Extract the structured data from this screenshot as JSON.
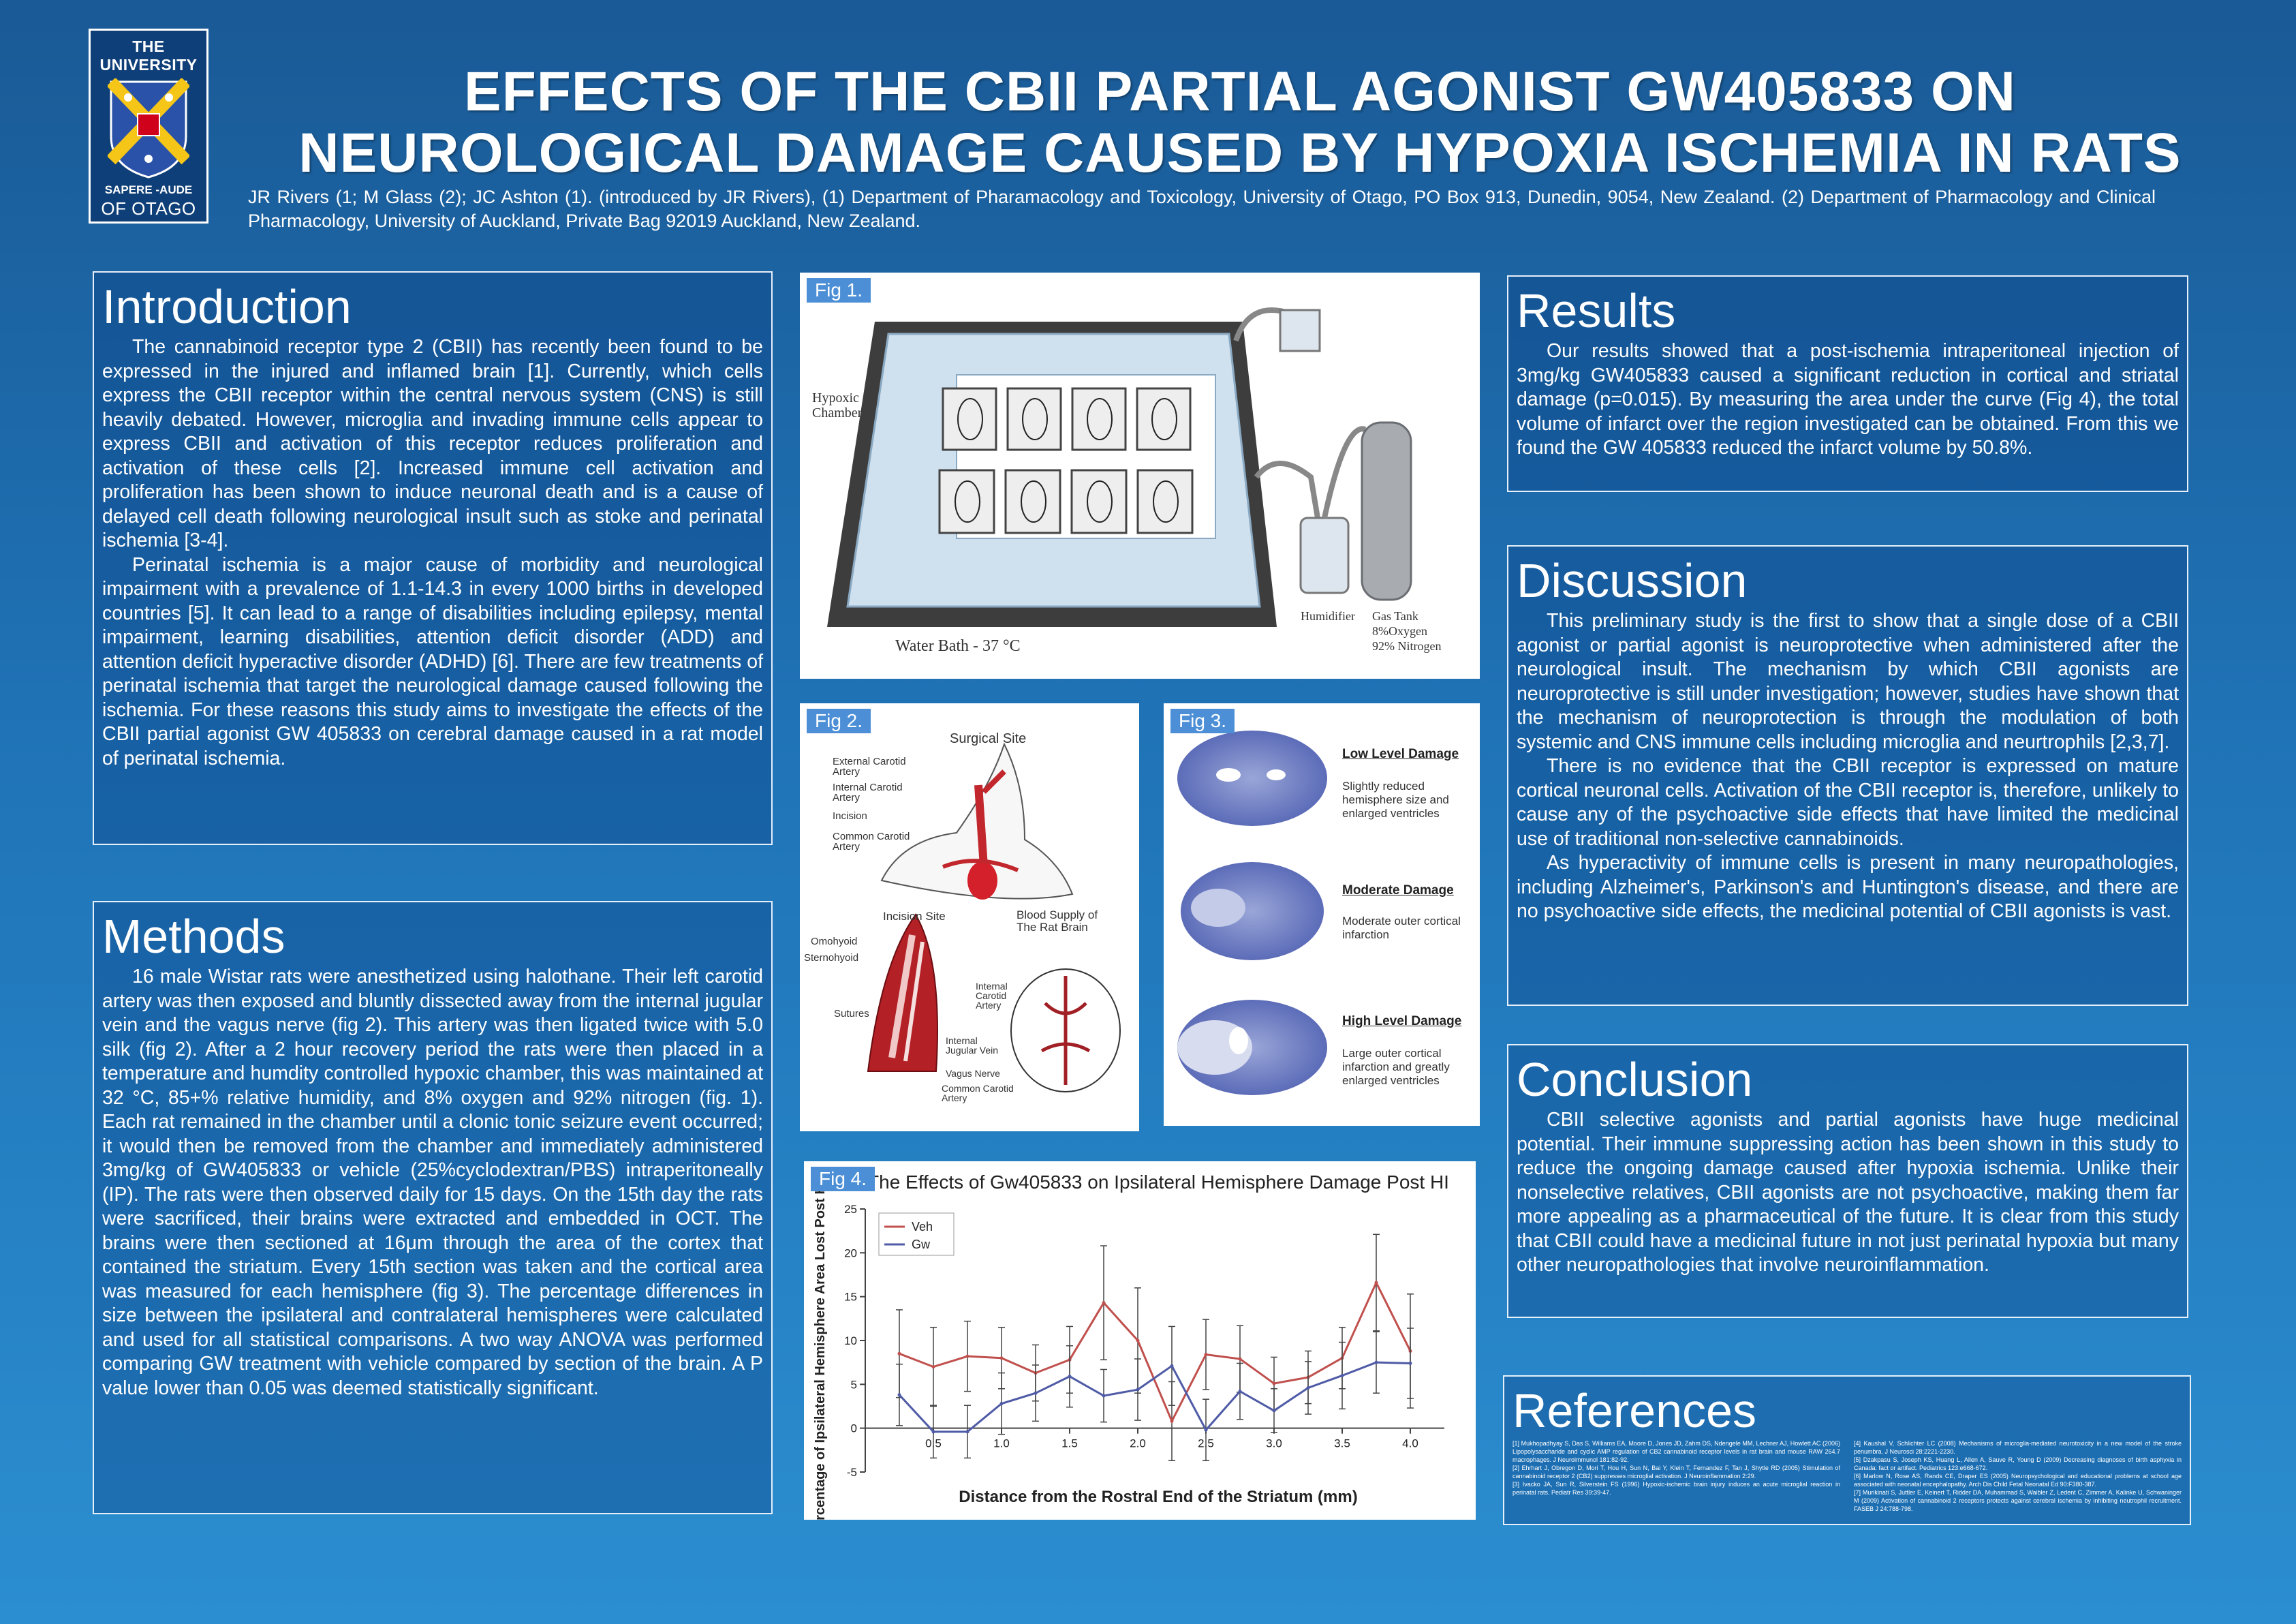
{
  "logo": {
    "top": "THE UNIVERSITY",
    "motto": "SAPERE -AUDE",
    "bottom": "OF OTAGO"
  },
  "header": {
    "title_line1": "EFFECTS OF THE CBII PARTIAL AGONIST GW405833 ON",
    "title_line2": "NEUROLOGICAL DAMAGE CAUSED BY HYPOXIA ISCHEMIA IN RATS",
    "authors": "JR Rivers (1; M Glass (2); JC Ashton (1). (introduced by JR Rivers), (1) Department of Pharamacology and Toxicology, University of Otago, PO Box 913, Dunedin, 9054, New Zealand. (2) Department of Pharmacology and Clinical Pharmacology, University of Auckland, Private Bag 92019 Auckland, New Zealand."
  },
  "introduction": {
    "heading": "Introduction",
    "p1": "The cannabinoid receptor type 2 (CBII) has recently been found to be expressed in the injured and inflamed brain [1]. Currently, which cells express the CBII receptor within the central nervous system (CNS) is still heavily debated. However, microglia and invading immune cells appear to express CBII and activation of this receptor reduces proliferation and activation of these cells [2]. Increased immune cell activation and proliferation has been shown to induce neuronal death and is a cause of delayed cell death following neurological insult such as stoke and perinatal ischemia [3-4].",
    "p2": "Perinatal ischemia is a major cause of morbidity and neurological impairment with a prevalence of 1.1-14.3 in every 1000 births in developed countries [5]. It can lead to a range of disabilities including epilepsy, mental impairment, learning disabilities, attention deficit disorder (ADD) and attention deficit hyperactive disorder (ADHD) [6]. There are few treatments of perinatal ischemia that target the neurological damage caused following the ischemia. For these reasons this study aims to investigate the effects of the CBII partial agonist GW 405833 on cerebral damage caused in a rat model of perinatal ischemia."
  },
  "methods": {
    "heading": "Methods",
    "p1": "16 male Wistar rats were anesthetized using halothane. Their left carotid artery was then exposed and bluntly dissected away from the internal jugular vein and the vagus nerve (fig 2). This artery was then ligated twice with 5.0 silk (fig 2). After a 2 hour recovery period the rats were then placed in a temperature and humdity controlled hypoxic chamber, this was maintained at 32 °C, 85+% relative humidity, and 8% oxygen and 92% nitrogen (fig. 1). Each rat remained in the chamber until a clonic tonic seizure event occurred; it would then be removed from the chamber and immediately administered 3mg/kg of GW405833 or vehicle (25%cyclodextran/PBS) intraperitoneally (IP). The rats were then observed daily for 15 days. On the 15th day the rats were sacrificed, their brains were extracted and embedded in OCT. The brains were then sectioned at 16μm through the area of the cortex that contained the striatum. Every 15th section was taken and the cortical area was measured for each hemisphere (fig 3). The percentage differences in size between the ipsilateral and contralateral hemispheres were calculated and used for all statistical comparisons. A two way ANOVA was performed comparing GW treatment with vehicle compared by section of the brain. A P value lower than 0.05 was deemed statistically significant."
  },
  "results": {
    "heading": "Results",
    "p1": "Our results showed that a post-ischemia intraperitoneal injection of 3mg/kg GW405833 caused a significant reduction in cortical and striatal damage (p=0.015). By measuring the area under the curve (Fig 4), the total volume of infarct over the region investigated can be obtained. From this we found the GW 405833 reduced the infarct volume by 50.8%."
  },
  "discussion": {
    "heading": "Discussion",
    "p1": "This preliminary study is the first to show that a single dose of a CBII agonist or partial agonist is neuroprotective when administered after the neurological insult. The mechanism by which CBII agonists are neuroprotective is still under investigation; however, studies have shown that the mechanism of neuroprotection is through the modulation of both systemic and CNS immune cells including microglia and neurtrophils [2,3,7].",
    "p2": "There is no evidence that the CBII receptor is expressed on mature cortical neuronal cells. Activation of the CBII receptor is, therefore, unlikely to cause any of the psychoactive side effects that have limited the medicinal use of traditional non-selective cannabinoids.",
    "p3": "As hyperactivity of immune cells is present in many neuropathologies, including Alzheimer's, Parkinson's and Huntington's disease, and there are no psychoactive side effects, the medicinal potential of CBII agonists is vast."
  },
  "conclusion": {
    "heading": "Conclusion",
    "p1": "CBII selective agonists and partial agonists have huge medicinal potential. Their immune suppressing action has been shown in this study to reduce the ongoing damage caused after hypoxia ischemia. Unlike their nonselective relatives, CBII agonists are not psychoactive, making them far more appealing as a pharmaceutical of the future. It is clear from this study that CBII could have a medicinal future in not just perinatal hypoxia but many other neuropathologies that involve neuroinflammation."
  },
  "references": {
    "heading": "References",
    "col1": [
      "[1] Mukhopadhyay S, Das S, Williams EA, Moore D, Jones JD, Zahm DS, Ndengele MM, Lechner AJ, Howlett AC (2006) Lipopolysaccharide and cyclic AMP regulation of CB2 cannabinoid receptor levels in rat brain and mouse RAW 264.7 macrophages. J Neuroimmunol 181:82-92.",
      "[2] Ehrhart J, Obregon D, Mori T, Hou H, Sun N, Bai Y, Klein T, Fernandez F, Tan J, Shytle RD (2005) Stimulation of cannabinoid receptor 2 (CB2) suppresses microglial activation. J Neuroinflammation 2:29.",
      "[3] Ivacko JA, Sun R, Silverstein FS (1996) Hypoxic-ischemic brain injury induces an acute microglial reaction in perinatal rats. Pediatr Res 39:39-47."
    ],
    "col2": [
      "[4] Kaushal V, Schlichter LC (2008) Mechanisms of microglia-mediated neurotoxicity in a new model of the stroke penumbra. J Neurosci 28:2221-2230.",
      "[5] Dzakpasu S, Joseph KS, Huang L, Allen A, Sauve R, Young D (2009) Decreasing diagnoses of birth asphyxia in Canada: fact or artifact. Pediatrics 123:e668-672.",
      "[6] Marlow N, Rose AS, Rands CE, Draper ES (2005) Neuropsychological and educational problems at school age associated with neonatal encephalopathy. Arch Dis Child Fetal Neonatal Ed 90:F380-387.",
      "[7] Murikinati S, Juttler E, Keinert T, Ridder DA, Muhammad S, Waibler Z, Ledent C, Zimmer A, Kalinke U, Schwaninger M (2009) Activation of cannabinoid 2 receptors protects against cerebral ischemia by inhibiting neutrophil recruitment. FASEB J 24:788-798."
    ]
  },
  "fig1": {
    "tag": "Fig 1.",
    "label_chamber": "Hypoxic\nChamber",
    "label_bath": "Water Bath - 37 °C",
    "label_humidifier": "Humidifier",
    "label_tank": "Gas Tank",
    "label_oxygen": "8%Oxygen",
    "label_nitrogen": "92% Nitrogen"
  },
  "fig2": {
    "tag": "Fig 2.",
    "surgical_site": "Surgical Site",
    "external_carotid": "External Carotid\nArtery",
    "internal_carotid": "Internal Carotid\nArtery",
    "incision": "Incision",
    "common_carotid": "Common Carotid\nArtery",
    "incision_site": "Incision Site",
    "blood_supply": "Blood Supply of\nThe Rat Brain",
    "omohyoid": "Omohyoid",
    "sternohyoid": "Sternohyoid",
    "sutures": "Sutures",
    "internal_carotid2": "Internal\nCarotid\nArtery",
    "internal_jugular": "Internal\nJugular Vein",
    "vagus": "Vagus Nerve",
    "common_carotid2": "Common Carotid\nArtery"
  },
  "fig3": {
    "tag": "Fig 3.",
    "low_title": "Low Level Damage",
    "low_desc": "Slightly reduced hemisphere size and enlarged ventricles",
    "mod_title": "Moderate Damage",
    "mod_desc": "Moderate outer cortical infarction",
    "high_title": "High Level Damage",
    "high_desc": "Large outer cortical infarction and greatly enlarged ventricles"
  },
  "fig4": {
    "tag": "Fig 4.",
    "chart_data": {
      "type": "line",
      "title": "The Effects of Gw405833 on Ipsilateral Hemisphere Damage Post HI",
      "xlabel": "Distance from the Rostral End of the Striatum (mm)",
      "ylabel": "Percentage of Ipsilateral Hemisphere Area Lost Post HI",
      "xlim": [
        0,
        4.25
      ],
      "ylim": [
        -5,
        25
      ],
      "x_ticks": [
        "0.5",
        "1.0",
        "1.5",
        "2.0",
        "2.5",
        "3.0",
        "3.5",
        "4.0"
      ],
      "y_ticks": [
        "-5",
        "0",
        "5",
        "10",
        "15",
        "20",
        "25"
      ],
      "legend_position": "top-left",
      "x": [
        0.25,
        0.5,
        0.75,
        1.0,
        1.25,
        1.5,
        1.75,
        2.0,
        2.25,
        2.5,
        2.75,
        3.0,
        3.25,
        3.5,
        3.75,
        4.0
      ],
      "series": [
        {
          "name": "Veh",
          "color": "#c0504d",
          "values": [
            8.5,
            7.0,
            8.2,
            8.0,
            6.3,
            7.8,
            14.3,
            10.0,
            0.8,
            8.4,
            7.9,
            5.1,
            5.8,
            8.0,
            16.6,
            8.8
          ],
          "errors": [
            5.0,
            4.5,
            4.0,
            3.5,
            3.2,
            3.8,
            6.5,
            6.0,
            4.5,
            4.0,
            3.8,
            3.0,
            3.0,
            3.5,
            5.5,
            6.5
          ]
        },
        {
          "name": "Gw",
          "color": "#4f5ba6",
          "values": [
            3.8,
            -0.4,
            -0.4,
            2.8,
            4.0,
            5.9,
            3.7,
            4.4,
            7.1,
            -0.2,
            4.2,
            2.0,
            4.6,
            6.0,
            7.5,
            7.4
          ],
          "errors": [
            3.5,
            3.0,
            3.0,
            3.5,
            3.2,
            3.5,
            3.0,
            3.5,
            4.5,
            3.5,
            3.2,
            2.5,
            3.0,
            3.8,
            3.5,
            4.0
          ]
        }
      ]
    }
  }
}
